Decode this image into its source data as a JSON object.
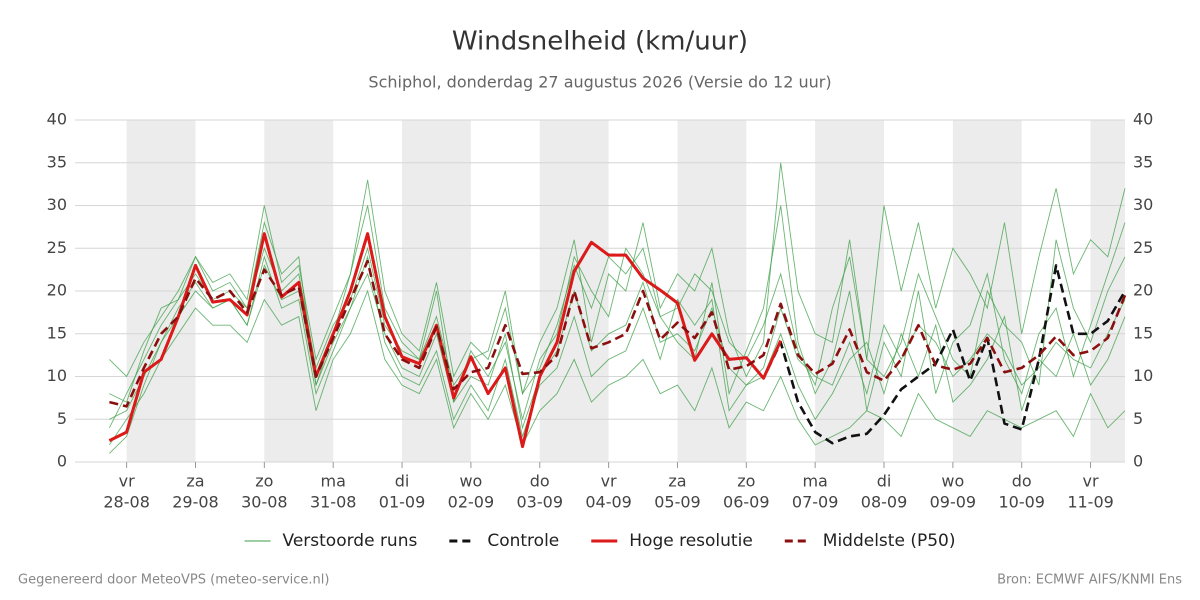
{
  "chart_data": {
    "type": "line",
    "title": "Windsnelheid (km/uur)",
    "subtitle": "Schiphol, donderdag 27 augustus 2026 (Versie do 12 uur)",
    "footer_left": "Gegenereerd door MeteoVPS (meteo-service.nl)",
    "footer_right": "Bron: ECMWF AIFS/KNMI Ens",
    "xlim": [
      -18,
      348
    ],
    "xticks": [
      {
        "value": 0,
        "label": [
          "vr",
          "28-08"
        ]
      },
      {
        "value": 24,
        "label": [
          "za",
          "29-08"
        ]
      },
      {
        "value": 48,
        "label": [
          "zo",
          "30-08"
        ]
      },
      {
        "value": 72,
        "label": [
          "ma",
          "31-08"
        ]
      },
      {
        "value": 96,
        "label": [
          "di",
          "01-09"
        ]
      },
      {
        "value": 120,
        "label": [
          "wo",
          "02-09"
        ]
      },
      {
        "value": 144,
        "label": [
          "do",
          "03-09"
        ]
      },
      {
        "value": 168,
        "label": [
          "vr",
          "04-09"
        ]
      },
      {
        "value": 192,
        "label": [
          "za",
          "05-09"
        ]
      },
      {
        "value": 216,
        "label": [
          "zo",
          "06-09"
        ]
      },
      {
        "value": 240,
        "label": [
          "ma",
          "07-09"
        ]
      },
      {
        "value": 264,
        "label": [
          "di",
          "08-09"
        ]
      },
      {
        "value": 288,
        "label": [
          "wo",
          "09-09"
        ]
      },
      {
        "value": 312,
        "label": [
          "do",
          "10-09"
        ]
      },
      {
        "value": 336,
        "label": [
          "vr",
          "11-09"
        ]
      }
    ],
    "ylim": [
      0,
      40
    ],
    "yticks": [
      0,
      5,
      10,
      15,
      20,
      25,
      30,
      35,
      40
    ],
    "grid": true,
    "x": [
      -6,
      0,
      6,
      12,
      18,
      24,
      30,
      36,
      42,
      48,
      54,
      60,
      66,
      72,
      78,
      84,
      90,
      96,
      102,
      108,
      114,
      120,
      126,
      132,
      138,
      144,
      150,
      156,
      162,
      168,
      174,
      180,
      186,
      192,
      198,
      204,
      210,
      216,
      222,
      228,
      234,
      240,
      246,
      252,
      258,
      264,
      270,
      276,
      282,
      288,
      294,
      300,
      306,
      312,
      318,
      324,
      330,
      336,
      342,
      348
    ],
    "ensemble": {
      "name": "Verstoorde runs",
      "color": "#3a9e44",
      "members": [
        [
          4,
          8,
          12,
          16,
          19,
          24,
          20,
          21,
          18,
          28,
          22,
          24,
          9,
          15,
          22,
          30,
          18,
          14,
          12,
          20,
          7,
          13,
          10,
          14,
          5,
          12,
          15,
          24,
          20,
          17,
          25,
          22,
          17,
          14,
          12,
          21,
          8,
          13,
          18,
          30,
          14,
          8,
          12,
          20,
          6,
          14,
          10,
          20,
          8,
          14,
          16,
          22,
          12,
          8,
          15,
          18,
          10,
          16,
          22,
          28
        ],
        [
          1,
          3,
          9,
          14,
          17,
          20,
          18,
          19,
          16,
          24,
          18,
          19,
          8,
          13,
          18,
          24,
          14,
          10,
          9,
          13,
          5,
          9,
          6,
          12,
          3,
          9,
          11,
          17,
          10,
          12,
          13,
          18,
          12,
          19,
          16,
          19,
          6,
          9,
          10,
          15,
          9,
          5,
          8,
          12,
          14,
          8,
          15,
          10,
          16,
          7,
          9,
          12,
          17,
          6,
          12,
          10,
          15,
          9,
          12,
          17
        ],
        [
          12,
          10,
          14,
          17,
          20,
          24,
          21,
          22,
          19,
          30,
          21,
          23,
          12,
          17,
          22,
          33,
          20,
          15,
          13,
          21,
          10,
          14,
          12,
          18,
          8,
          14,
          18,
          26,
          14,
          22,
          20,
          28,
          18,
          22,
          20,
          25,
          15,
          10,
          14,
          35,
          20,
          15,
          14,
          26,
          12,
          30,
          20,
          28,
          18,
          25,
          22,
          18,
          28,
          15,
          24,
          32,
          22,
          26,
          24,
          32
        ],
        [
          2,
          5,
          8,
          12,
          15,
          18,
          16,
          16,
          14,
          19,
          16,
          17,
          6,
          12,
          15,
          20,
          12,
          9,
          8,
          12,
          4,
          8,
          5,
          9,
          2,
          6,
          8,
          12,
          7,
          9,
          10,
          12,
          8,
          9,
          6,
          11,
          4,
          7,
          6,
          10,
          5,
          2,
          3,
          4,
          6,
          5,
          3,
          8,
          5,
          4,
          3,
          6,
          5,
          4,
          5,
          6,
          3,
          8,
          4,
          6
        ],
        [
          8,
          7,
          13,
          18,
          19,
          22,
          19,
          20,
          18,
          25,
          20,
          22,
          11,
          16,
          19,
          25,
          16,
          13,
          12,
          17,
          9,
          12,
          13,
          20,
          8,
          11,
          16,
          23,
          18,
          24,
          22,
          25,
          17,
          18,
          22,
          20,
          14,
          12,
          16,
          22,
          13,
          9,
          18,
          24,
          12,
          10,
          14,
          22,
          17,
          12,
          10,
          20,
          16,
          14,
          9,
          26,
          18,
          14,
          20,
          24
        ],
        [
          5,
          6,
          10,
          14,
          18,
          21,
          18,
          19,
          16,
          23,
          19,
          20,
          9,
          14,
          18,
          22,
          15,
          11,
          10,
          15,
          7,
          10,
          9,
          15,
          4,
          10,
          13,
          20,
          13,
          15,
          16,
          21,
          14,
          15,
          13,
          18,
          11,
          9,
          11,
          18,
          12,
          10,
          9,
          14,
          8,
          16,
          12,
          16,
          14,
          10,
          12,
          15,
          13,
          9,
          11,
          14,
          12,
          11,
          15,
          19
        ]
      ]
    },
    "series": [
      {
        "name": "Controle",
        "color": "#111111",
        "dash": true,
        "values": [
          2.5,
          3.5,
          10.5,
          12,
          17,
          23,
          18.7,
          19,
          17.2,
          26.7,
          19.3,
          21,
          10,
          15,
          20,
          26.7,
          17,
          12.3,
          11.5,
          16,
          7.5,
          12.3,
          8,
          11,
          1.8,
          10,
          14,
          22.3,
          25.7,
          24.2,
          24.2,
          21.5,
          20.1,
          18.6,
          11.9,
          15,
          12,
          12.2,
          9.8,
          14,
          7,
          3.5,
          2.2,
          3,
          3.3,
          5.5,
          8.5,
          10,
          11.5,
          15.5,
          9.5,
          14.5,
          4.5,
          3.8,
          12,
          23,
          15,
          15,
          16.5,
          20
        ]
      },
      {
        "name": "Hoge resolutie",
        "color": "#dd1a1a",
        "dash": false,
        "values": [
          2.5,
          3.5,
          10.5,
          12,
          17,
          23,
          18.7,
          19,
          17.2,
          26.7,
          19.3,
          21,
          10,
          15,
          20,
          26.7,
          17,
          12.3,
          11.5,
          16,
          7.5,
          12.3,
          8,
          11,
          1.8,
          10,
          14,
          22.3,
          25.7,
          24.2,
          24.2,
          21.5,
          20.1,
          18.6,
          11.9,
          15,
          12,
          12.2,
          9.8,
          14.2,
          null,
          null,
          null,
          null,
          null,
          null,
          null,
          null,
          null,
          null,
          null,
          null,
          null,
          null,
          null,
          null,
          null,
          null,
          null,
          null
        ]
      },
      {
        "name": "Middelste (P50)",
        "color": "#8b0f0f",
        "dash": true,
        "values": [
          7,
          6.5,
          11,
          15,
          17,
          21.5,
          19,
          20,
          17.5,
          22.5,
          19.5,
          20.5,
          10,
          14.5,
          19,
          23.5,
          15,
          12,
          11,
          15.8,
          8.5,
          10.5,
          11,
          16,
          10.3,
          10.5,
          12.5,
          20,
          13.3,
          14,
          15,
          20,
          14.3,
          16.3,
          14.5,
          17.5,
          10.8,
          11.2,
          12.5,
          18.5,
          12.5,
          10.3,
          11.5,
          15.5,
          10.5,
          9.5,
          12,
          16,
          11.3,
          10.8,
          11.5,
          14.5,
          10.5,
          11,
          12.5,
          14.7,
          12.5,
          13,
          14.5,
          19.5
        ]
      }
    ]
  }
}
